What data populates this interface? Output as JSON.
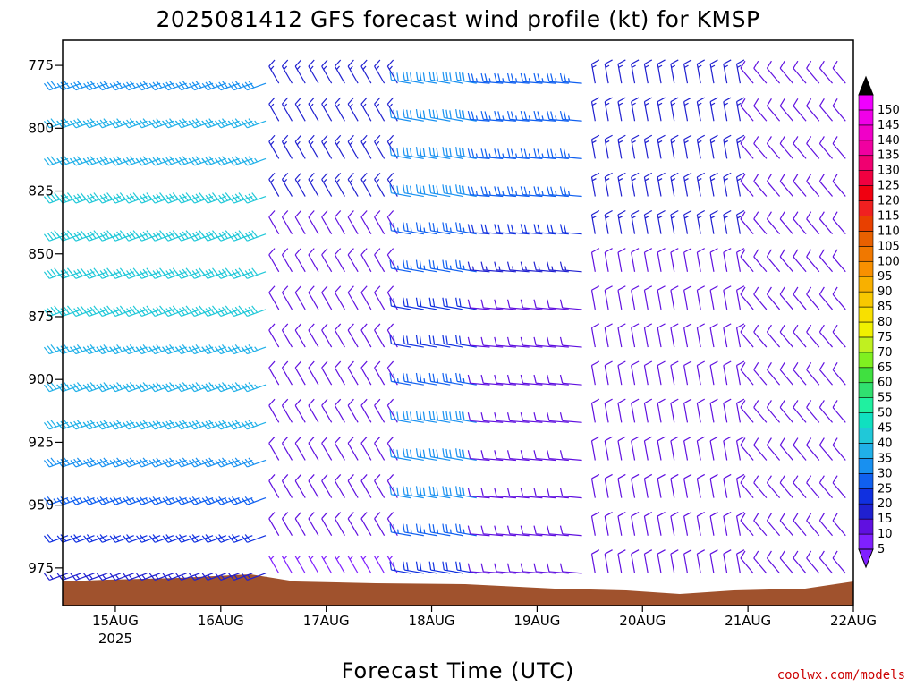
{
  "chart_data": {
    "type": "wind-barb-profile",
    "title": "2025081412 GFS forecast wind profile (kt) for KMSP",
    "xlabel": "Forecast Time (UTC)",
    "credit": "coolwx.com/models",
    "y_axis": {
      "ticks": [
        775,
        800,
        825,
        850,
        875,
        900,
        925,
        950,
        975
      ],
      "range": [
        765,
        990
      ],
      "inverted": true
    },
    "x_axis": {
      "ticks": [
        "15AUG",
        "16AUG",
        "17AUG",
        "18AUG",
        "19AUG",
        "20AUG",
        "21AUG",
        "22AUG"
      ],
      "year_label": "2025",
      "range": [
        "2025-08-14T12",
        "2025-08-22T00"
      ]
    },
    "levels": [
      780,
      795,
      810,
      825,
      840,
      855,
      870,
      885,
      900,
      915,
      930,
      945,
      960,
      975
    ],
    "colorbar": {
      "values": [
        5,
        10,
        15,
        20,
        25,
        30,
        35,
        40,
        45,
        50,
        55,
        60,
        65,
        70,
        75,
        80,
        85,
        90,
        95,
        100,
        105,
        110,
        115,
        120,
        125,
        130,
        135,
        140,
        145,
        150
      ],
      "colors": [
        "#8020ff",
        "#6010e0",
        "#2020d0",
        "#1030e0",
        "#1060f0",
        "#1890f0",
        "#20b0e8",
        "#20c8d8",
        "#10e0c0",
        "#20f0a0",
        "#30e070",
        "#40e040",
        "#80f020",
        "#c0f020",
        "#f0f000",
        "#f8e000",
        "#f8c800",
        "#f8b000",
        "#f89000",
        "#f07800",
        "#e86000",
        "#e84000",
        "#f02020",
        "#f00010",
        "#f00040",
        "#f00070",
        "#f000a0",
        "#f000c8",
        "#f000e8",
        "#f000ff"
      ]
    },
    "terrain_color": "#a0522d",
    "wind_segments": [
      {
        "start": "2025-08-14T12",
        "end": "2025-08-16T12",
        "direction_deg": 250,
        "speed_kt": [
          30,
          35,
          35,
          40,
          40,
          40,
          40,
          35,
          35,
          35,
          30,
          25,
          20,
          15
        ]
      },
      {
        "start": "2025-08-16T12",
        "end": "2025-08-17T18",
        "direction_deg": 330,
        "speed_kt": [
          15,
          15,
          15,
          15,
          10,
          10,
          10,
          10,
          10,
          10,
          10,
          10,
          10,
          5
        ]
      },
      {
        "start": "2025-08-17T18",
        "end": "2025-08-18T12",
        "direction_deg": 280,
        "speed_kt": [
          30,
          30,
          30,
          30,
          25,
          25,
          20,
          20,
          25,
          30,
          30,
          30,
          25,
          20
        ]
      },
      {
        "start": "2025-08-18T12",
        "end": "2025-08-19T12",
        "direction_deg": 275,
        "speed_kt": [
          25,
          25,
          25,
          25,
          20,
          15,
          10,
          10,
          10,
          10,
          10,
          10,
          10,
          10
        ]
      },
      {
        "start": "2025-08-19T12",
        "end": "2025-08-21T00",
        "direction_deg": 350,
        "speed_kt": [
          15,
          15,
          15,
          15,
          15,
          10,
          10,
          10,
          10,
          10,
          10,
          10,
          10,
          10
        ]
      },
      {
        "start": "2025-08-21T00",
        "end": "2025-08-22T00",
        "direction_deg": 320,
        "speed_kt": [
          10,
          10,
          10,
          10,
          10,
          10,
          10,
          10,
          10,
          10,
          10,
          10,
          10,
          10
        ]
      }
    ]
  }
}
